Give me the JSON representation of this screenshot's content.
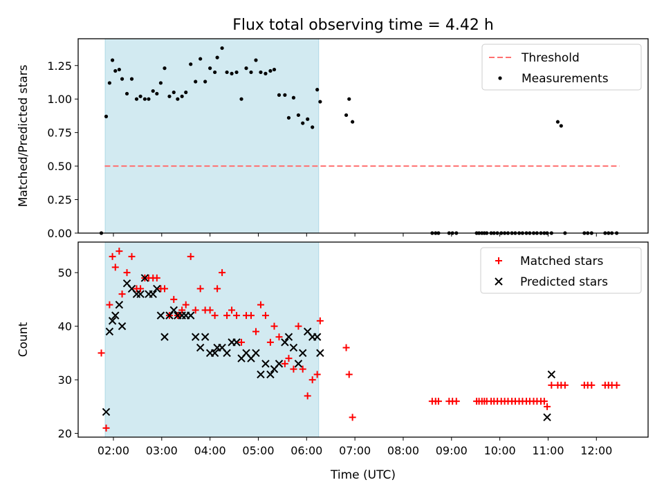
{
  "figure": {
    "title": "Flux total observing time = 4.42 h"
  },
  "chart_data": [
    {
      "type": "scatter",
      "panel": "top",
      "title": "Flux total observing time = 4.42 h",
      "xlabel": "",
      "ylabel": "Matched/Predicted stars",
      "xlim": [
        1.27,
        13.07
      ],
      "ylim": [
        0.0,
        1.45
      ],
      "yticks": [
        0.0,
        0.25,
        0.5,
        0.75,
        1.0,
        1.25
      ],
      "ytick_labels": [
        "0.00",
        "0.25",
        "0.50",
        "0.75",
        "1.00",
        "1.25"
      ],
      "grid": false,
      "legend_position": "top-right",
      "shaded_span": {
        "x": [
          1.83,
          6.25
        ],
        "color": "#add8e6"
      },
      "series": [
        {
          "name": "Threshold",
          "kind": "line",
          "style": "dashed",
          "color": "#ff6f6f",
          "x": [
            1.82,
            12.48
          ],
          "y": [
            0.5,
            0.5
          ]
        },
        {
          "name": "Measurements",
          "kind": "scatter",
          "marker": "dot",
          "color": "#000000",
          "x": [
            1.75,
            1.85,
            1.92,
            1.98,
            2.04,
            2.12,
            2.18,
            2.28,
            2.38,
            2.48,
            2.56,
            2.65,
            2.73,
            2.82,
            2.9,
            2.98,
            3.06,
            3.16,
            3.25,
            3.33,
            3.42,
            3.5,
            3.6,
            3.7,
            3.8,
            3.9,
            4.0,
            4.1,
            4.15,
            4.25,
            4.35,
            4.45,
            4.55,
            4.65,
            4.75,
            4.85,
            4.95,
            5.05,
            5.15,
            5.25,
            5.33,
            5.43,
            5.55,
            5.63,
            5.73,
            5.83,
            5.92,
            6.02,
            6.12,
            6.22,
            6.28,
            6.82,
            6.88,
            6.95,
            8.6,
            8.67,
            8.73,
            8.95,
            9.02,
            9.1,
            9.52,
            9.57,
            9.63,
            9.68,
            9.73,
            9.82,
            9.88,
            9.95,
            10.03,
            10.1,
            10.17,
            10.25,
            10.32,
            10.4,
            10.47,
            10.55,
            10.62,
            10.7,
            10.77,
            10.85,
            10.92,
            10.98,
            11.07,
            11.2,
            11.27,
            11.35,
            11.75,
            11.82,
            11.9,
            12.18,
            12.25,
            12.32,
            12.42
          ],
          "y": [
            0.0,
            0.87,
            1.12,
            1.29,
            1.21,
            1.22,
            1.15,
            1.04,
            1.15,
            1.0,
            1.02,
            1.0,
            1.0,
            1.06,
            1.04,
            1.12,
            1.23,
            1.02,
            1.05,
            1.0,
            1.02,
            1.05,
            1.26,
            1.13,
            1.3,
            1.13,
            1.23,
            1.2,
            1.31,
            1.38,
            1.2,
            1.19,
            1.2,
            1.0,
            1.23,
            1.2,
            1.29,
            1.2,
            1.19,
            1.21,
            1.22,
            1.03,
            1.03,
            0.86,
            1.01,
            0.88,
            0.82,
            0.85,
            0.79,
            1.07,
            0.98,
            0.88,
            1.0,
            0.83,
            0.0,
            0.0,
            0.0,
            0.0,
            0.0,
            0.0,
            0.0,
            0.0,
            0.0,
            0.0,
            0.0,
            0.0,
            0.0,
            0.0,
            0.0,
            0.0,
            0.0,
            0.0,
            0.0,
            0.0,
            0.0,
            0.0,
            0.0,
            0.0,
            0.0,
            0.0,
            0.0,
            0.0,
            0.0,
            0.83,
            0.8,
            0.0,
            0.0,
            0.0,
            0.0,
            0.0,
            0.0,
            0.0,
            0.0
          ]
        }
      ]
    },
    {
      "type": "scatter",
      "panel": "bottom",
      "title": "",
      "xlabel": "Time (UTC)",
      "ylabel": "Count",
      "xlim": [
        1.27,
        13.07
      ],
      "ylim": [
        19.3,
        55.7
      ],
      "yticks": [
        20,
        30,
        40,
        50
      ],
      "ytick_labels": [
        "20",
        "30",
        "40",
        "50"
      ],
      "xticks": [
        2,
        3,
        4,
        5,
        6,
        7,
        8,
        9,
        10,
        11,
        12
      ],
      "xtick_labels": [
        "02:00",
        "03:00",
        "04:00",
        "05:00",
        "06:00",
        "07:00",
        "08:00",
        "09:00",
        "10:00",
        "11:00",
        "12:00"
      ],
      "grid": false,
      "legend_position": "top-right",
      "shaded_span": {
        "x": [
          1.83,
          6.25
        ],
        "color": "#add8e6"
      },
      "series": [
        {
          "name": "Matched stars",
          "kind": "scatter",
          "marker": "plus",
          "color": "#ff0000",
          "x": [
            1.75,
            1.85,
            1.92,
            1.98,
            2.04,
            2.12,
            2.18,
            2.28,
            2.38,
            2.48,
            2.56,
            2.65,
            2.73,
            2.82,
            2.9,
            2.98,
            3.06,
            3.16,
            3.25,
            3.33,
            3.42,
            3.5,
            3.6,
            3.7,
            3.8,
            3.9,
            4.0,
            4.1,
            4.15,
            4.25,
            4.35,
            4.45,
            4.55,
            4.65,
            4.75,
            4.85,
            4.95,
            5.05,
            5.15,
            5.25,
            5.33,
            5.43,
            5.55,
            5.63,
            5.73,
            5.83,
            5.92,
            6.02,
            6.12,
            6.22,
            6.28,
            6.82,
            6.88,
            6.95,
            8.6,
            8.67,
            8.73,
            8.95,
            9.02,
            9.1,
            9.52,
            9.57,
            9.63,
            9.68,
            9.73,
            9.82,
            9.88,
            9.95,
            10.03,
            10.1,
            10.17,
            10.25,
            10.32,
            10.4,
            10.47,
            10.55,
            10.62,
            10.7,
            10.77,
            10.85,
            10.92,
            10.98,
            11.07,
            11.2,
            11.27,
            11.35,
            11.75,
            11.82,
            11.9,
            12.18,
            12.25,
            12.32,
            12.42
          ],
          "y": [
            35,
            21,
            44,
            53,
            51,
            54,
            46,
            50,
            53,
            47,
            47,
            49,
            49,
            49,
            49,
            47,
            47,
            42,
            45,
            42,
            43,
            44,
            53,
            43,
            47,
            43,
            43,
            42,
            47,
            50,
            42,
            43,
            42,
            37,
            42,
            42,
            39,
            44,
            42,
            37,
            40,
            38,
            33,
            34,
            32,
            40,
            32,
            27,
            30,
            31,
            41,
            36,
            31,
            23,
            26,
            26,
            26,
            26,
            26,
            26,
            26,
            26,
            26,
            26,
            26,
            26,
            26,
            26,
            26,
            26,
            26,
            26,
            26,
            26,
            26,
            26,
            26,
            26,
            26,
            26,
            26,
            25,
            29,
            29,
            29,
            29,
            29,
            29,
            29,
            29,
            29,
            29,
            29
          ]
        },
        {
          "name": "Predicted stars",
          "kind": "scatter",
          "marker": "x",
          "color": "#000000",
          "x": [
            1.85,
            1.92,
            1.98,
            2.04,
            2.12,
            2.18,
            2.28,
            2.38,
            2.48,
            2.56,
            2.65,
            2.73,
            2.82,
            2.9,
            2.98,
            3.06,
            3.16,
            3.25,
            3.33,
            3.42,
            3.5,
            3.6,
            3.7,
            3.8,
            3.9,
            4.0,
            4.1,
            4.15,
            4.25,
            4.35,
            4.45,
            4.55,
            4.65,
            4.75,
            4.85,
            4.95,
            5.05,
            5.15,
            5.25,
            5.33,
            5.43,
            5.55,
            5.63,
            5.73,
            5.83,
            5.92,
            6.02,
            6.12,
            6.22,
            6.28,
            10.98,
            11.07
          ],
          "y": [
            24,
            39,
            41,
            42,
            44,
            40,
            48,
            47,
            46,
            46,
            49,
            46,
            46,
            47,
            42,
            38,
            42,
            43,
            42,
            42,
            42,
            42,
            38,
            36,
            38,
            35,
            35,
            36,
            36,
            35,
            37,
            37,
            34,
            35,
            34,
            35,
            31,
            33,
            31,
            32,
            33,
            37,
            38,
            36,
            33,
            35,
            39,
            38,
            38,
            35,
            23,
            31
          ]
        }
      ]
    }
  ]
}
